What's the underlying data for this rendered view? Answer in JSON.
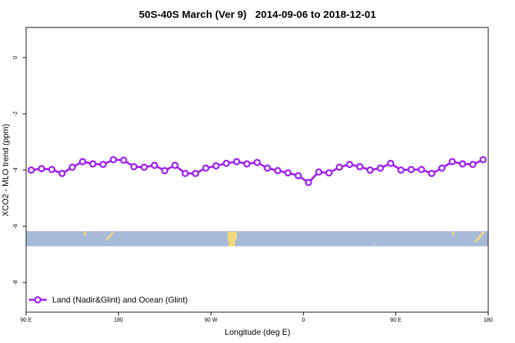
{
  "chart_data": {
    "type": "line",
    "title": "50S-40S March (Ver 9)   2014-09-06 to 2018-12-01",
    "x_label": "Longitude (deg E)",
    "y_label": "XCO2 - MLO trend (ppm)",
    "x": [
      95,
      105,
      115,
      125,
      135,
      145,
      155,
      165,
      175,
      185,
      195,
      205,
      215,
      225,
      235,
      245,
      255,
      265,
      275,
      285,
      295,
      305,
      315,
      325,
      335,
      345,
      355,
      365,
      375,
      385,
      395,
      405,
      415,
      425,
      435,
      445,
      455,
      465,
      475,
      485,
      495,
      505,
      515,
      525,
      535
    ],
    "series": [
      {
        "name": "Land (Nadir&Glint) and Ocean (Glint)",
        "color": "#a020f0",
        "values": [
          -4.0,
          -3.95,
          -3.98,
          -4.12,
          -3.9,
          -3.7,
          -3.78,
          -3.8,
          -3.63,
          -3.65,
          -3.88,
          -3.9,
          -3.83,
          -4.02,
          -3.83,
          -4.12,
          -4.12,
          -3.93,
          -3.85,
          -3.76,
          -3.7,
          -3.78,
          -3.73,
          -3.93,
          -4.02,
          -4.1,
          -4.2,
          -4.44,
          -4.07,
          -4.1,
          -3.9,
          -3.8,
          -3.88,
          -4.0,
          -3.93,
          -3.76,
          -4.0,
          -3.98,
          -3.98,
          -4.12,
          -3.93,
          -3.7,
          -3.78,
          -3.8,
          -3.63
        ]
      }
    ],
    "xlim": [
      90,
      540
    ],
    "xticks": [
      {
        "value": 90,
        "label": "90 E"
      },
      180,
      {
        "value": 270,
        "label": "90 W"
      },
      {
        "value": 360,
        "label": "0"
      },
      {
        "value": 450,
        "label": "90 E"
      },
      {
        "value": 540,
        "label": "180"
      }
    ],
    "ylim": [
      -9.05,
      1.07
    ],
    "yticks": [
      0,
      -2,
      -4,
      -6,
      -8
    ],
    "legend": "bottom-left"
  }
}
